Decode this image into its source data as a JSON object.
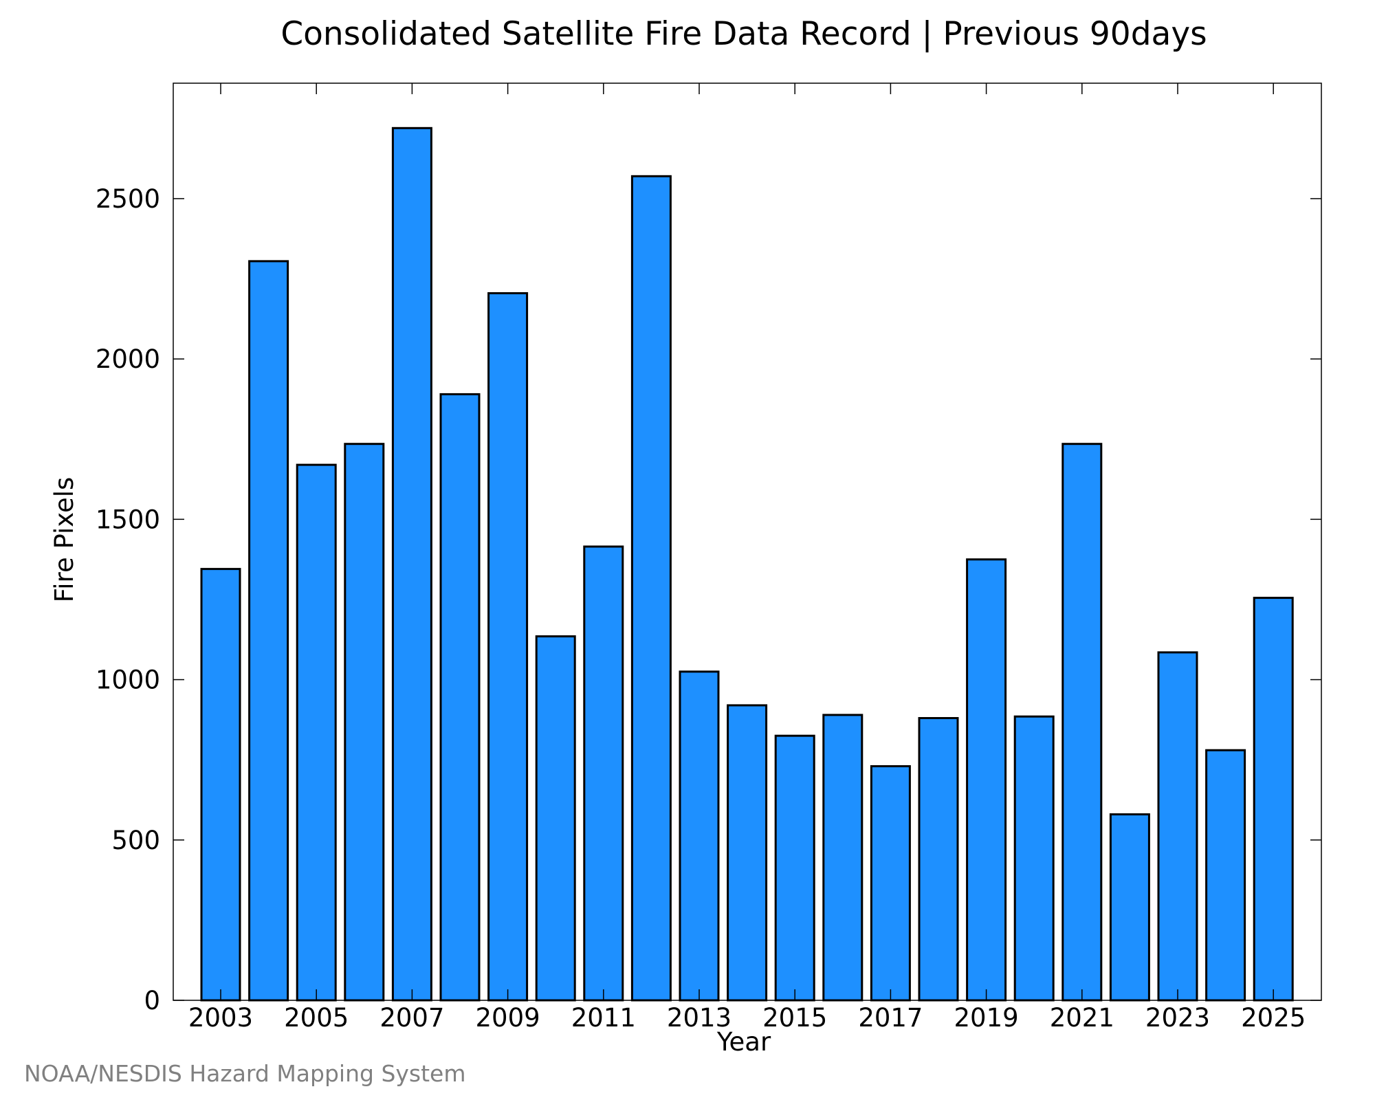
{
  "chart_data": {
    "type": "bar",
    "title": "Consolidated Satellite Fire Data Record | Previous 90days",
    "xlabel": "Year",
    "ylabel": "Fire Pixels",
    "categories": [
      "2003",
      "2004",
      "2005",
      "2006",
      "2007",
      "2008",
      "2009",
      "2010",
      "2011",
      "2012",
      "2013",
      "2014",
      "2015",
      "2016",
      "2017",
      "2018",
      "2019",
      "2020",
      "2021",
      "2022",
      "2023",
      "2024",
      "2025"
    ],
    "values": [
      1345,
      2305,
      1670,
      1735,
      2720,
      1890,
      2205,
      1135,
      1415,
      2570,
      1025,
      920,
      825,
      890,
      730,
      880,
      1375,
      885,
      1735,
      580,
      1085,
      780,
      1255
    ],
    "xticks": [
      "2003",
      "2005",
      "2007",
      "2009",
      "2011",
      "2013",
      "2015",
      "2017",
      "2019",
      "2021",
      "2023",
      "2025"
    ],
    "yticks": [
      0,
      500,
      1000,
      1500,
      2000,
      2500
    ],
    "ylim": [
      0,
      2860
    ],
    "bar_color": "#1e90ff",
    "edge_color": "#000000",
    "grid": false,
    "credit": "NOAA/NESDIS Hazard Mapping System"
  }
}
